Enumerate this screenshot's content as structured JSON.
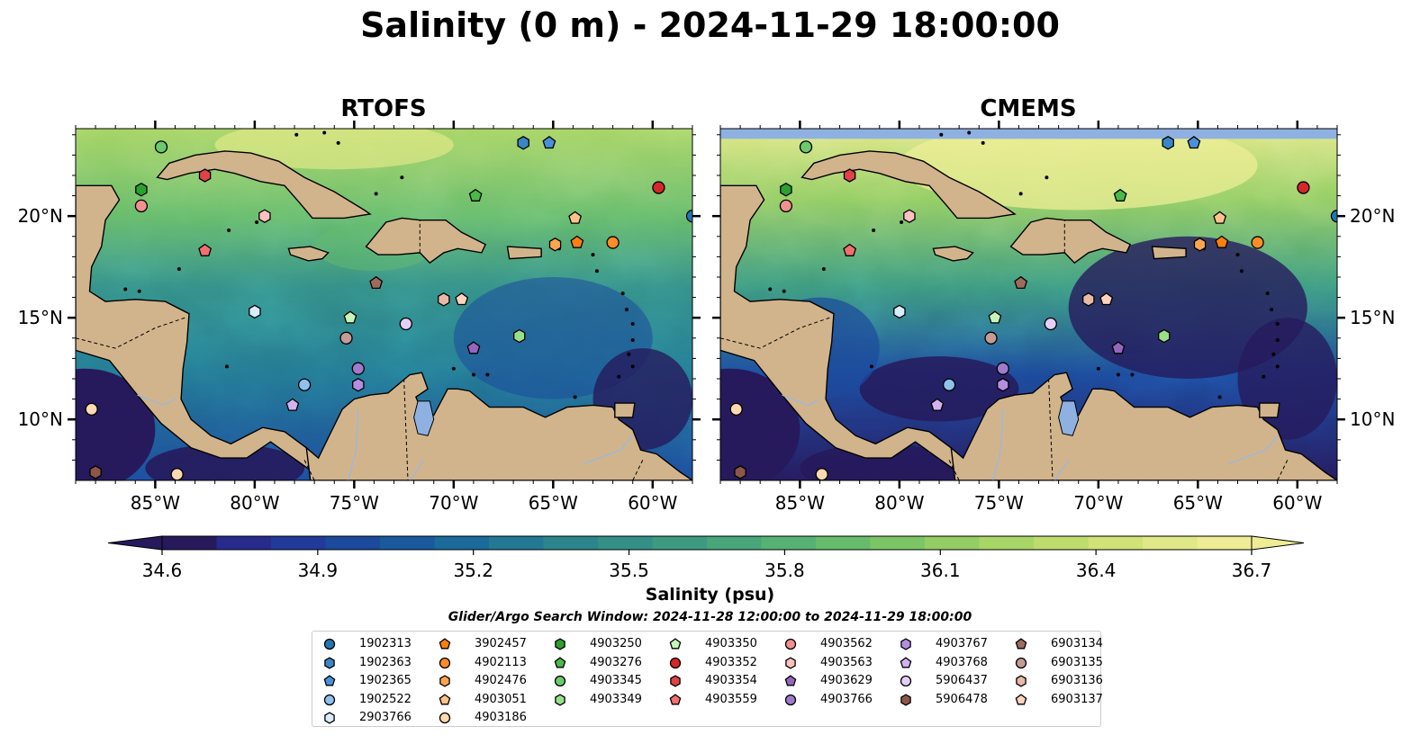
{
  "title": "Salinity (0 m) - 2024-11-29 18:00:00",
  "panels": [
    {
      "id": "rtofs",
      "title": "RTOFS"
    },
    {
      "id": "cmems",
      "title": "CMEMS"
    }
  ],
  "map": {
    "lon_range": [
      -89,
      -58
    ],
    "lat_range": [
      7,
      24.3
    ],
    "lon_ticks": [
      -85,
      -80,
      -75,
      -70,
      -65,
      -60
    ],
    "lon_tick_labels": [
      "85°W",
      "80°W",
      "75°W",
      "70°W",
      "65°W",
      "60°W"
    ],
    "lat_ticks": [
      10,
      15,
      20
    ],
    "lat_tick_labels": [
      "10°N",
      "15°N",
      "20°N"
    ],
    "land_color": "#d2b48c",
    "lake_color": "#8fb1e2",
    "nodata_color": "#8fb1e2"
  },
  "colorbar": {
    "label": "Salinity (psu)",
    "min": 34.6,
    "max": 36.7,
    "extend": "both",
    "ticks": [
      34.6,
      34.9,
      35.2,
      35.5,
      35.8,
      36.1,
      36.4,
      36.7
    ],
    "tick_labels": [
      "34.6",
      "34.9",
      "35.2",
      "35.5",
      "35.8",
      "36.1",
      "36.4",
      "36.7"
    ],
    "colors": [
      "#261a5c",
      "#282a8c",
      "#223a9a",
      "#1c4a9c",
      "#185a9c",
      "#1a6a9a",
      "#237893",
      "#2c848d",
      "#348f87",
      "#3d9a80",
      "#48a67a",
      "#56b174",
      "#67bc6c",
      "#7cc566",
      "#93cd63",
      "#a8d566",
      "#bddc6d",
      "#d0e278",
      "#e0e887",
      "#eeed95"
    ]
  },
  "search_window": "Glider/Argo Search Window: 2024-11-28 12:00:00 to 2024-11-29 18:00:00",
  "markers": [
    {
      "id": "1902313",
      "shape": "circle",
      "color": "#1f77b4",
      "lon": -58,
      "lat": 20
    },
    {
      "id": "1902363",
      "shape": "hexagon",
      "color": "#3a86c8",
      "lon": -66.5,
      "lat": 23.6
    },
    {
      "id": "1902365",
      "shape": "pentagon",
      "color": "#4a90d9",
      "lon": -65.2,
      "lat": 23.6
    },
    {
      "id": "1902522",
      "shape": "circle",
      "color": "#8ec1ee",
      "lon": -77.5,
      "lat": 11.7
    },
    {
      "id": "2903766",
      "shape": "hexagon",
      "color": "#d9ecfb",
      "lon": -80,
      "lat": 15.3
    },
    {
      "id": "3902457",
      "shape": "pentagon",
      "color": "#ff7f0e",
      "lon": -63.8,
      "lat": 18.7
    },
    {
      "id": "4902113",
      "shape": "circle",
      "color": "#ff8c28",
      "lon": -62,
      "lat": 18.7
    },
    {
      "id": "4902476",
      "shape": "hexagon",
      "color": "#ffa550",
      "lon": -64.9,
      "lat": 18.6
    },
    {
      "id": "4903051",
      "shape": "pentagon",
      "color": "#ffc38a",
      "lon": -63.9,
      "lat": 19.9
    },
    {
      "id": "4903186",
      "shape": "circle",
      "color": "#ffd9b0",
      "lon": -88.2,
      "lat": 10.5
    },
    {
      "id": "4903250",
      "shape": "hexagon",
      "color": "#2ca02c",
      "lon": -85.7,
      "lat": 21.3
    },
    {
      "id": "4903276",
      "shape": "pentagon",
      "color": "#4cb84c",
      "lon": -68.9,
      "lat": 21.0
    },
    {
      "id": "4903345",
      "shape": "circle",
      "color": "#6cc96c",
      "lon": -84.7,
      "lat": 23.4
    },
    {
      "id": "4903349",
      "shape": "hexagon",
      "color": "#98df8a",
      "lon": -66.7,
      "lat": 14.1
    },
    {
      "id": "4903350",
      "shape": "pentagon",
      "color": "#c6f5b8",
      "lon": -75.2,
      "lat": 15.0
    },
    {
      "id": "4903352",
      "shape": "circle",
      "color": "#d62728",
      "lon": -59.7,
      "lat": 21.4
    },
    {
      "id": "4903354",
      "shape": "hexagon",
      "color": "#e04344",
      "lon": -82.5,
      "lat": 22.0
    },
    {
      "id": "4903559",
      "shape": "pentagon",
      "color": "#f07070",
      "lon": -82.5,
      "lat": 18.3
    },
    {
      "id": "4903562",
      "shape": "circle",
      "color": "#f29090",
      "lon": -85.7,
      "lat": 20.5
    },
    {
      "id": "4903563",
      "shape": "hexagon",
      "color": "#ffc0c0",
      "lon": -79.5,
      "lat": 20.0
    },
    {
      "id": "4903629",
      "shape": "pentagon",
      "color": "#9467bd",
      "lon": -69.0,
      "lat": 13.5
    },
    {
      "id": "4903766",
      "shape": "circle",
      "color": "#a07acb",
      "lon": -74.8,
      "lat": 12.5
    },
    {
      "id": "4903767",
      "shape": "hexagon",
      "color": "#b58ee0",
      "lon": -74.8,
      "lat": 11.7
    },
    {
      "id": "4903768",
      "shape": "pentagon",
      "color": "#d2b3f0",
      "lon": -78.1,
      "lat": 10.7
    },
    {
      "id": "5906437",
      "shape": "circle",
      "color": "#e6cff7",
      "lon": -72.4,
      "lat": 14.7
    },
    {
      "id": "5906478",
      "shape": "hexagon",
      "color": "#8c564b",
      "lon": -88.0,
      "lat": 7.4
    },
    {
      "id": "6903134",
      "shape": "pentagon",
      "color": "#9e6b5e",
      "lon": -73.9,
      "lat": 16.7
    },
    {
      "id": "6903135",
      "shape": "circle",
      "color": "#c49c94",
      "lon": -75.4,
      "lat": 14.0
    },
    {
      "id": "6903136",
      "shape": "hexagon",
      "color": "#e8b9a6",
      "lon": -70.5,
      "lat": 15.9
    },
    {
      "id": "6903137",
      "shape": "pentagon",
      "color": "#ffd3bd",
      "lon": -69.6,
      "lat": 15.9
    },
    {
      "id": "4903186",
      "shape": "circle",
      "color": "#ffd9b0",
      "lon": -83.9,
      "lat": 7.3
    }
  ],
  "legend": {
    "columns": [
      [
        0,
        1,
        2,
        3,
        4
      ],
      [
        5,
        6,
        7,
        8,
        9
      ],
      [
        10,
        11,
        12,
        13
      ],
      [
        14,
        15,
        16,
        17
      ],
      [
        18,
        19,
        20,
        21
      ],
      [
        22,
        23,
        24,
        25
      ],
      [
        26,
        27,
        28,
        29
      ]
    ]
  }
}
